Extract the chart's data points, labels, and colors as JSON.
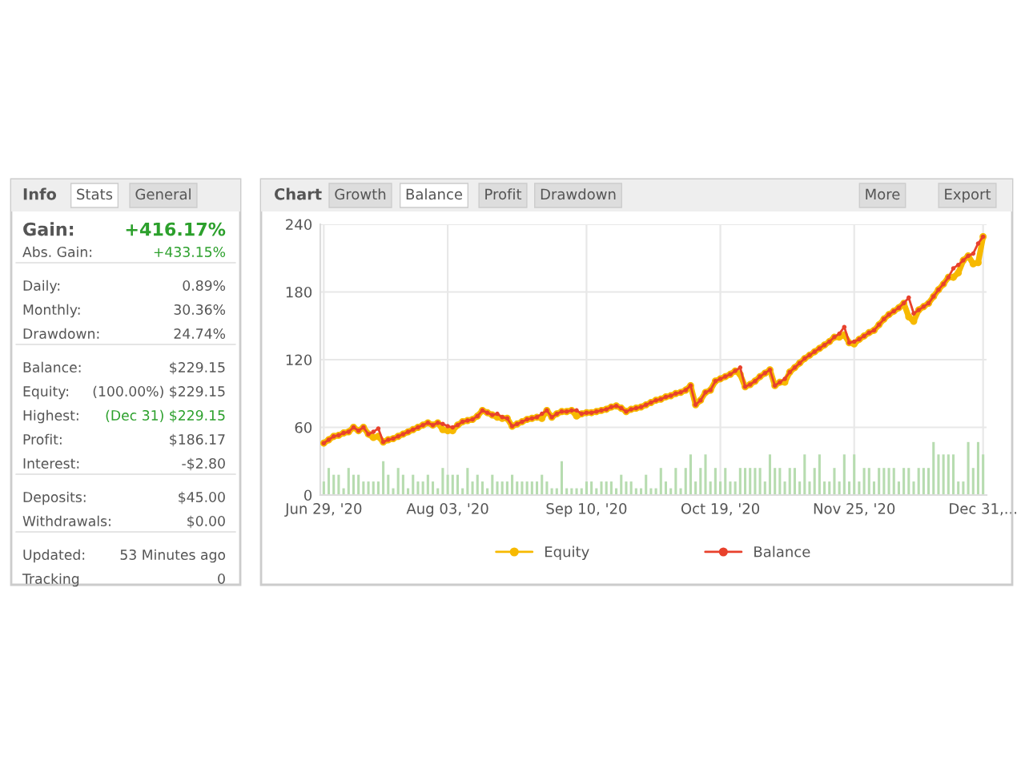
{
  "chart_data": [
    {
      "type": "other",
      "title": "Info",
      "annotations": [
        "Stats",
        "General",
        "Gain:",
        "+416.17%",
        "Abs. Gain:",
        "+433.15%",
        "Daily:",
        "0.89%",
        "Monthly:",
        "30.36%",
        "Drawdown:",
        "24.74%",
        "Balance:",
        "$229.15",
        "Equity:",
        "(100.00%) $229.15",
        "Highest:",
        "(Dec 31) $229.15",
        "Profit:",
        "$186.17",
        "Interest:",
        "-$2.80",
        "Deposits:",
        "$45.00",
        "Withdrawals:",
        "$0.00",
        "Updated:",
        "53 Minutes ago",
        "Tracking",
        "0"
      ]
    },
    {
      "type": "line",
      "title": "Chart",
      "annotations": [
        "Growth",
        "Balance",
        "Profit",
        "Drawdown",
        "More",
        "Export"
      ],
      "categories": [
        "Jun 29, '20",
        null,
        null,
        null,
        null,
        null,
        null,
        null,
        null,
        null,
        null,
        null,
        null,
        null,
        null,
        null,
        null,
        null,
        null,
        null,
        null,
        null,
        null,
        null,
        null,
        "Aug 03, '20",
        null,
        null,
        null,
        null,
        null,
        null,
        null,
        null,
        null,
        null,
        null,
        null,
        null,
        null,
        null,
        null,
        null,
        null,
        null,
        null,
        null,
        null,
        null,
        null,
        null,
        null,
        null,
        "Sep 10, '20",
        null,
        null,
        null,
        null,
        null,
        null,
        null,
        null,
        null,
        null,
        null,
        null,
        null,
        null,
        null,
        null,
        null,
        null,
        null,
        null,
        null,
        null,
        null,
        null,
        null,
        null,
        "Oct 19, '20",
        null,
        null,
        null,
        null,
        null,
        null,
        null,
        null,
        null,
        null,
        null,
        null,
        null,
        null,
        null,
        null,
        null,
        null,
        null,
        null,
        null,
        null,
        null,
        null,
        null,
        null,
        "Nov 25, '20",
        null,
        null,
        null,
        null,
        null,
        null,
        null,
        null,
        null,
        null,
        null,
        null,
        null,
        null,
        null,
        null,
        null,
        null,
        null,
        null,
        null,
        null,
        null,
        null,
        null,
        "Dec 31,..."
      ],
      "ylim": [
        0,
        240
      ],
      "yticks": [
        0,
        60,
        120,
        180,
        240
      ],
      "grid": true,
      "legend": "bottom",
      "marker": "circle",
      "series": [
        {
          "type": "bar",
          "color": "#b7dcb0",
          "values": [
            12,
            24,
            18,
            18,
            6,
            24,
            18,
            18,
            12,
            12,
            12,
            12,
            30,
            18,
            6,
            24,
            18,
            6,
            18,
            12,
            12,
            18,
            12,
            6,
            24,
            18,
            18,
            18,
            6,
            24,
            12,
            18,
            12,
            6,
            18,
            12,
            12,
            12,
            18,
            12,
            12,
            12,
            12,
            12,
            18,
            12,
            6,
            6,
            30,
            6,
            6,
            6,
            6,
            12,
            12,
            6,
            12,
            12,
            12,
            6,
            18,
            12,
            12,
            6,
            6,
            18,
            6,
            6,
            24,
            12,
            6,
            24,
            6,
            24,
            36,
            12,
            24,
            36,
            12,
            24,
            12,
            24,
            12,
            12,
            24,
            24,
            24,
            24,
            24,
            12,
            36,
            24,
            24,
            12,
            24,
            24,
            12,
            36,
            12,
            24,
            36,
            12,
            12,
            24,
            12,
            36,
            12,
            36,
            12,
            24,
            24,
            12,
            24,
            24,
            24,
            24,
            12,
            24,
            24,
            12,
            24,
            24,
            24,
            47,
            36,
            36,
            36,
            36,
            12,
            12,
            47,
            24,
            47,
            36
          ]
        },
        {
          "type": "line",
          "name": "Equity",
          "color": "#f7b900",
          "values": [
            46,
            49,
            52,
            53,
            55,
            56,
            60,
            57,
            60,
            54,
            51,
            52,
            47,
            49,
            50,
            52,
            54,
            56,
            58,
            60,
            62,
            64,
            62,
            64,
            58,
            57,
            57,
            62,
            65,
            66,
            67,
            70,
            75,
            73,
            71,
            69,
            68,
            68,
            61,
            63,
            65,
            67,
            68,
            69,
            68,
            75,
            69,
            72,
            74,
            74,
            75,
            70,
            72,
            73,
            73,
            74,
            75,
            76,
            78,
            79,
            77,
            74,
            76,
            77,
            78,
            80,
            82,
            84,
            85,
            87,
            88,
            90,
            91,
            93,
            97,
            80,
            84,
            91,
            93,
            101,
            103,
            105,
            107,
            110,
            107,
            96,
            98,
            101,
            105,
            108,
            111,
            97,
            100,
            100,
            109,
            113,
            117,
            121,
            124,
            127,
            130,
            133,
            136,
            140,
            140,
            142,
            135,
            134,
            138,
            141,
            144,
            146,
            151,
            156,
            160,
            163,
            166,
            170,
            158,
            154,
            164,
            167,
            170,
            176,
            182,
            187,
            193,
            193,
            197,
            208,
            212,
            205,
            206,
            229
          ]
        },
        {
          "type": "line",
          "name": "Balance",
          "color": "#e8412c",
          "values": [
            46,
            49,
            52,
            53,
            55,
            56,
            60,
            57,
            60,
            54,
            56,
            59,
            47,
            49,
            50,
            52,
            54,
            56,
            58,
            60,
            62,
            64,
            62,
            64,
            63,
            61,
            60,
            62,
            65,
            66,
            67,
            70,
            75,
            73,
            71,
            72,
            69,
            68,
            61,
            63,
            65,
            67,
            68,
            69,
            72,
            75,
            69,
            72,
            74,
            74,
            75,
            75,
            72,
            73,
            73,
            74,
            75,
            76,
            78,
            79,
            77,
            74,
            76,
            77,
            78,
            80,
            82,
            84,
            85,
            87,
            88,
            90,
            91,
            93,
            97,
            80,
            84,
            91,
            93,
            101,
            103,
            105,
            107,
            110,
            113,
            96,
            98,
            101,
            105,
            108,
            111,
            97,
            100,
            103,
            109,
            113,
            117,
            121,
            124,
            127,
            130,
            133,
            136,
            140,
            143,
            149,
            135,
            136,
            138,
            141,
            144,
            146,
            151,
            156,
            160,
            163,
            166,
            170,
            175,
            161,
            164,
            167,
            170,
            176,
            182,
            187,
            193,
            201,
            204,
            208,
            212,
            214,
            223,
            229
          ]
        }
      ]
    }
  ]
}
